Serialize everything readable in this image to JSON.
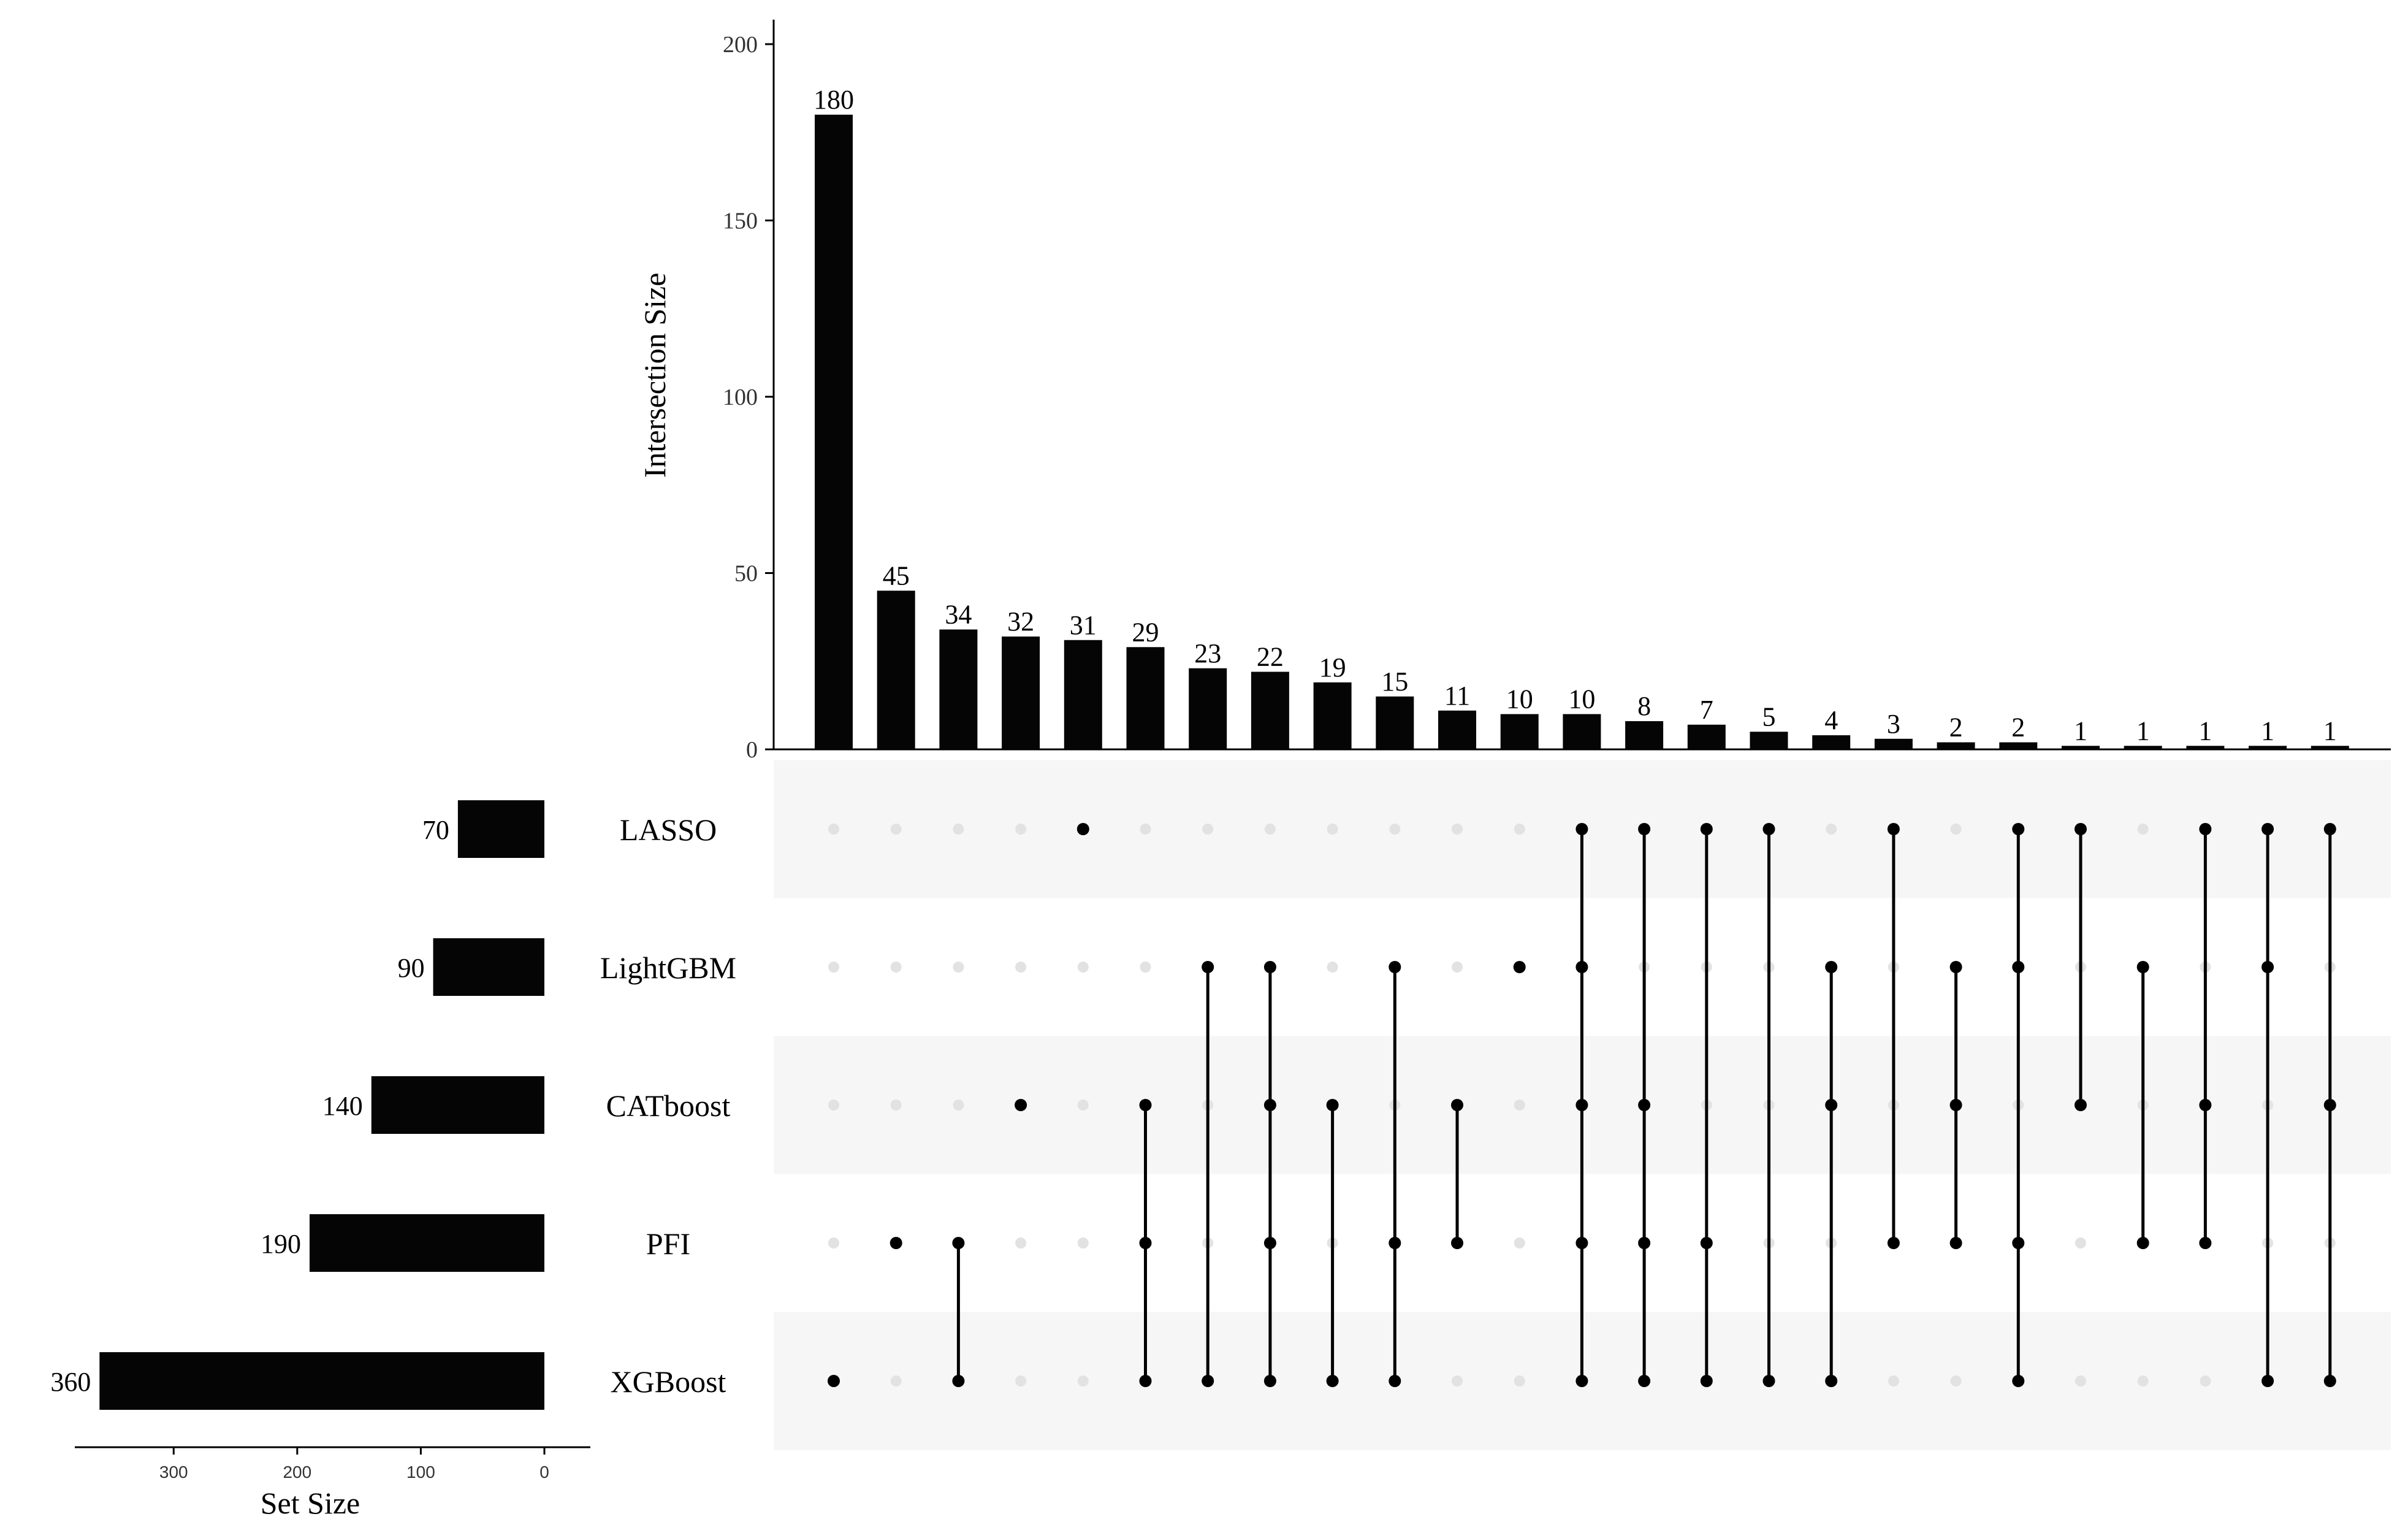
{
  "chart_data": {
    "type": "bar",
    "variant": "upset",
    "title": "",
    "ylabel": "Intersection Size",
    "ylim": [
      0,
      200
    ],
    "yticks": [
      0,
      50,
      100,
      150,
      200
    ],
    "set_size_label": "Set Size",
    "set_size_ticks": [
      300,
      200,
      100,
      0
    ],
    "set_size_lim": [
      0,
      380
    ],
    "sets": [
      {
        "name": "LASSO",
        "size": 70
      },
      {
        "name": "LightGBM",
        "size": 90
      },
      {
        "name": "CATboost",
        "size": 140
      },
      {
        "name": "PFI",
        "size": 190
      },
      {
        "name": "XGBoost",
        "size": 360
      }
    ],
    "intersections": [
      {
        "value": 180,
        "label": "180",
        "members": [
          "XGBoost"
        ]
      },
      {
        "value": 45,
        "label": "45",
        "members": [
          "PFI"
        ]
      },
      {
        "value": 34,
        "label": "34",
        "members": [
          "PFI",
          "XGBoost"
        ]
      },
      {
        "value": 32,
        "label": "32",
        "members": [
          "CATboost"
        ]
      },
      {
        "value": 31,
        "label": "31",
        "members": [
          "LASSO"
        ]
      },
      {
        "value": 29,
        "label": "29",
        "members": [
          "CATboost",
          "PFI",
          "XGBoost"
        ]
      },
      {
        "value": 23,
        "label": "23",
        "members": [
          "LightGBM",
          "XGBoost"
        ]
      },
      {
        "value": 22,
        "label": "22",
        "members": [
          "LightGBM",
          "CATboost",
          "PFI",
          "XGBoost"
        ]
      },
      {
        "value": 19,
        "label": "19",
        "members": [
          "CATboost",
          "XGBoost"
        ]
      },
      {
        "value": 15,
        "label": "15",
        "members": [
          "LightGBM",
          "PFI",
          "XGBoost"
        ]
      },
      {
        "value": 11,
        "label": "11",
        "members": [
          "CATboost",
          "PFI"
        ]
      },
      {
        "value": 10,
        "label": "10",
        "members": [
          "LightGBM"
        ]
      },
      {
        "value": 10,
        "label": "10",
        "members": [
          "LASSO",
          "LightGBM",
          "CATboost",
          "PFI",
          "XGBoost"
        ]
      },
      {
        "value": 8,
        "label": "8",
        "members": [
          "LASSO",
          "CATboost",
          "PFI",
          "XGBoost"
        ]
      },
      {
        "value": 7,
        "label": "7",
        "members": [
          "LASSO",
          "PFI",
          "XGBoost"
        ]
      },
      {
        "value": 5,
        "label": "5",
        "members": [
          "LASSO",
          "XGBoost"
        ]
      },
      {
        "value": 4,
        "label": "4",
        "members": [
          "LightGBM",
          "CATboost",
          "XGBoost"
        ]
      },
      {
        "value": 3,
        "label": "3",
        "members": [
          "LASSO",
          "PFI"
        ]
      },
      {
        "value": 2,
        "label": "2",
        "members": [
          "LightGBM",
          "CATboost",
          "PFI"
        ]
      },
      {
        "value": 2,
        "label": "2",
        "members": [
          "LASSO",
          "LightGBM",
          "PFI",
          "XGBoost"
        ]
      },
      {
        "value": 1,
        "label": "1",
        "members": [
          "LASSO",
          "CATboost"
        ]
      },
      {
        "value": 1,
        "label": "1",
        "members": [
          "LightGBM",
          "PFI"
        ]
      },
      {
        "value": 1,
        "label": "1",
        "members": [
          "LASSO",
          "CATboost",
          "PFI"
        ]
      },
      {
        "value": 1,
        "label": "1",
        "members": [
          "LASSO",
          "LightGBM",
          "XGBoost"
        ]
      },
      {
        "value": 1,
        "label": "1",
        "members": [
          "LASSO",
          "CATboost",
          "XGBoost"
        ]
      }
    ],
    "colors": {
      "bar": "#050505",
      "dot_active": "#000000",
      "dot_inactive": "#e2e2e2",
      "stripe": "#f6f6f6",
      "axis": "#000000"
    }
  }
}
